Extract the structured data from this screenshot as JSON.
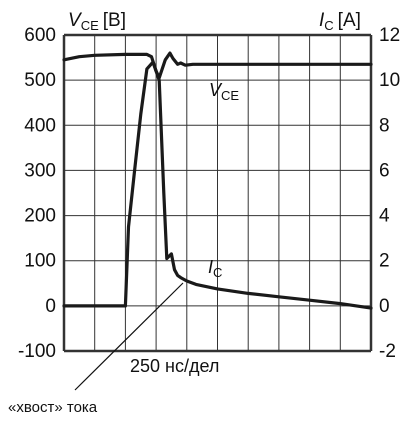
{
  "chart_data": {
    "type": "line",
    "left_axis_label": {
      "main": "V",
      "sub": "CE",
      "unit": "[B]"
    },
    "right_axis_label": {
      "main": "I",
      "sub": "C",
      "unit": "[A]"
    },
    "left_ylim": [
      -100,
      600
    ],
    "right_ylim": [
      -2,
      12
    ],
    "left_ticks": [
      "600",
      "500",
      "400",
      "300",
      "200",
      "100",
      "0",
      "-100"
    ],
    "right_ticks": [
      "12",
      "10",
      "8",
      "6",
      "4",
      "2",
      "0",
      "-2"
    ],
    "x_label": "250 нс/дел",
    "x_range_div": [
      0,
      10
    ],
    "grid": true,
    "series": [
      {
        "name": "V_CE",
        "label": {
          "main": "V",
          "sub": "CE"
        },
        "axis": "left",
        "x": [
          0,
          0.5,
          1,
          2,
          2.7,
          2.85,
          3.0,
          3.1,
          3.3,
          3.45,
          3.55,
          3.7,
          3.8,
          3.95,
          4.2,
          5,
          7,
          10
        ],
        "y": [
          545,
          552,
          555,
          557,
          557,
          552,
          520,
          505,
          545,
          560,
          548,
          535,
          538,
          533,
          535,
          535,
          535,
          535
        ]
      },
      {
        "name": "I_C",
        "label": {
          "main": "I",
          "sub": "C"
        },
        "axis": "right",
        "x": [
          0,
          2.0,
          2.1,
          2.3,
          2.5,
          2.7,
          2.9,
          3.1,
          3.25,
          3.35,
          3.5,
          3.6,
          3.7,
          3.8,
          4.0,
          4.3,
          5,
          6,
          7,
          8,
          9,
          10
        ],
        "y": [
          0,
          0,
          3.5,
          6,
          8.5,
          10.5,
          10.8,
          10,
          5,
          2.1,
          2.3,
          1.6,
          1.35,
          1.25,
          1.1,
          0.95,
          0.75,
          0.55,
          0.4,
          0.25,
          0.1,
          -0.1
        ]
      }
    ],
    "annotations": [
      "«хвост» тока"
    ]
  },
  "colors": {
    "line": "#1a1a1a",
    "grid": "#333333"
  }
}
